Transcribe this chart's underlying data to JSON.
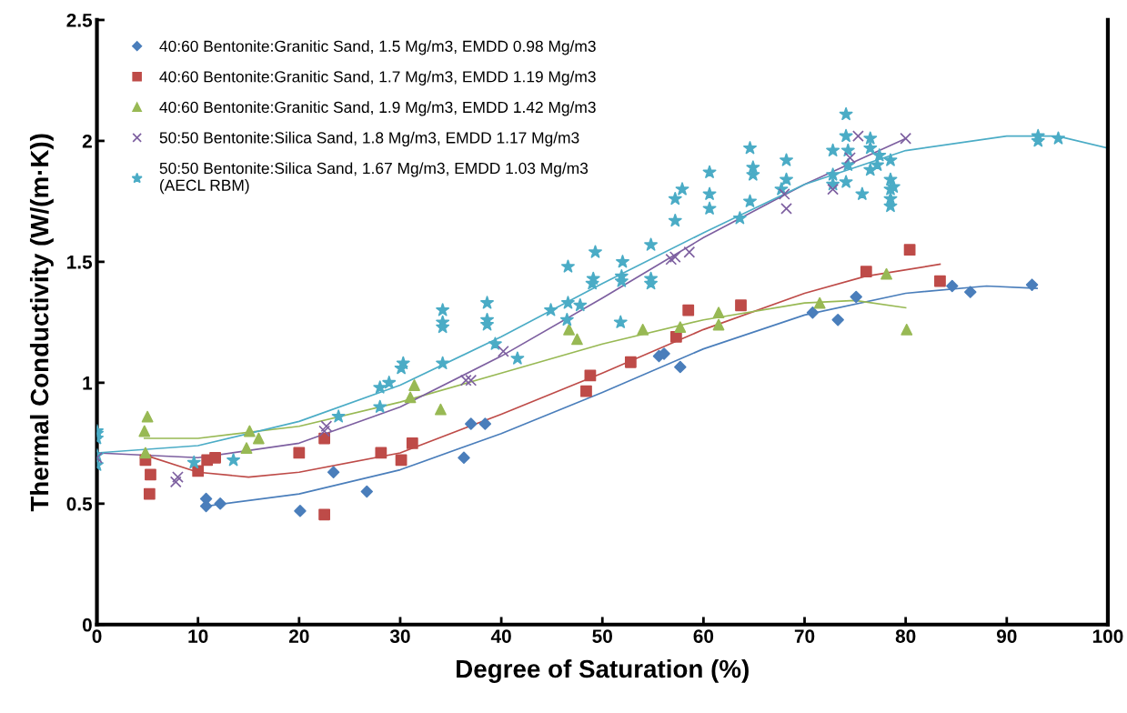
{
  "chart_data": {
    "type": "scatter",
    "xlabel": "Degree of Saturation (%)",
    "ylabel": "Thermal Conductivity (W/(m·K))",
    "xlim": [
      0,
      100
    ],
    "xticks": [
      0,
      10,
      20,
      30,
      40,
      50,
      60,
      70,
      80,
      90,
      100
    ],
    "ylim": [
      0,
      2.5
    ],
    "yticks": [
      0,
      {
        "value": 0.5,
        "label": "0.5"
      },
      1,
      {
        "value": 1.5,
        "label": "1.5"
      },
      2,
      {
        "value": 2.5,
        "label": "2.5"
      }
    ],
    "grid": false,
    "legend": "top left",
    "series": [
      {
        "name": "40:60 Bentonite:Granitic Sand, 1.5 Mg/m3, EMDD 0.98 Mg/m3",
        "marker": "diamond",
        "color": "#4a7ebb",
        "x": [
          10.8,
          10.8,
          12.2,
          20.1,
          23.4,
          26.7,
          36.3,
          37.0,
          38.4,
          55.6,
          56.1,
          57.7,
          70.8,
          73.3,
          75.1,
          84.6,
          86.4,
          92.5
        ],
        "values": [
          0.49,
          0.52,
          0.5,
          0.47,
          0.63,
          0.55,
          0.69,
          0.83,
          0.83,
          1.11,
          1.12,
          1.065,
          1.29,
          1.26,
          1.355,
          1.4,
          1.375,
          1.405
        ]
      },
      {
        "name": "40:60 Bentonite:Granitic Sand, 1.7 Mg/m3, EMDD 1.19 Mg/m3",
        "marker": "square",
        "color": "#be4b48",
        "x": [
          4.8,
          5.3,
          5.2,
          10.0,
          10.9,
          11.7,
          20.0,
          22.5,
          22.5,
          28.1,
          30.1,
          31.2,
          48.4,
          48.8,
          52.8,
          57.3,
          58.5,
          63.7,
          76.1,
          80.4,
          83.4
        ],
        "values": [
          0.68,
          0.62,
          0.54,
          0.635,
          0.68,
          0.69,
          0.71,
          0.455,
          0.77,
          0.71,
          0.68,
          0.75,
          0.965,
          1.03,
          1.085,
          1.19,
          1.3,
          1.32,
          1.46,
          1.55,
          1.42
        ]
      },
      {
        "name": "40:60 Bentonite:Granitic Sand, 1.9 Mg/m3, EMDD 1.42 Mg/m3",
        "marker": "triangle",
        "color": "#98b954",
        "x": [
          4.7,
          5.0,
          4.8,
          14.8,
          15.1,
          16.0,
          31.0,
          31.4,
          34.0,
          46.7,
          47.5,
          54.0,
          57.7,
          61.5,
          61.5,
          71.5,
          78.1,
          80.1
        ],
        "values": [
          0.8,
          0.86,
          0.71,
          0.73,
          0.8,
          0.77,
          0.94,
          0.99,
          0.89,
          1.22,
          1.18,
          1.22,
          1.23,
          1.24,
          1.29,
          1.33,
          1.45,
          1.22
        ]
      },
      {
        "name": "50:50 Bentonite:Silica Sand, 1.8 Mg/m3, EMDD 1.17 Mg/m3",
        "marker": "cross",
        "color": "#7d5fa0",
        "x": [
          0,
          7.8,
          8.0,
          22.5,
          22.7,
          36.5,
          37.0,
          40.2,
          56.8,
          57.2,
          58.6,
          68.2,
          68.0,
          72.8,
          74.5,
          75.3,
          80.0
        ],
        "values": [
          0.69,
          0.59,
          0.61,
          0.8,
          0.82,
          1.01,
          1.01,
          1.13,
          1.51,
          1.52,
          1.54,
          1.72,
          1.78,
          1.8,
          1.93,
          2.02,
          2.01
        ]
      },
      {
        "name": "50:50 Bentonite:Silica Sand, 1.67 Mg/m3, EMDD 1.03 Mg/m3\n(AECL RBM)",
        "marker": "star",
        "color": "#4bacc6",
        "x": [
          0,
          0,
          0,
          0,
          0,
          9.6,
          13.5,
          23.9,
          28.0,
          28.0,
          28.9,
          30.1,
          30.3,
          34.2,
          34.2,
          34.2,
          34.2,
          38.6,
          38.6,
          38.6,
          39.4,
          41.6,
          44.9,
          46.5,
          46.6,
          46.6,
          47.8,
          49.0,
          49.1,
          49.3,
          51.8,
          51.9,
          51.9,
          52.0,
          54.8,
          54.8,
          54.8,
          57.2,
          57.2,
          57.9,
          60.6,
          60.6,
          60.6,
          63.6,
          64.6,
          64.9,
          64.9,
          64.6,
          67.7,
          68.2,
          68.2,
          72.8,
          72.8,
          72.8,
          74.1,
          74.1,
          74.3,
          74.3,
          74.1,
          75.7,
          76.5,
          76.5,
          76.5,
          77.2,
          77.4,
          78.5,
          78.5,
          78.5,
          78.5,
          78.8,
          78.5,
          93.1,
          93.1,
          95.1
        ],
        "values": [
          0.66,
          0.7,
          0.77,
          0.79,
          0.8,
          0.67,
          0.68,
          0.86,
          0.9,
          0.98,
          1.0,
          1.06,
          1.08,
          1.08,
          1.23,
          1.25,
          1.3,
          1.24,
          1.26,
          1.33,
          1.16,
          1.1,
          1.3,
          1.26,
          1.33,
          1.48,
          1.32,
          1.41,
          1.43,
          1.54,
          1.25,
          1.42,
          1.44,
          1.5,
          1.41,
          1.43,
          1.57,
          1.67,
          1.76,
          1.8,
          1.72,
          1.78,
          1.87,
          1.68,
          1.75,
          1.86,
          1.89,
          1.97,
          1.8,
          1.84,
          1.92,
          1.82,
          1.86,
          1.96,
          2.02,
          2.11,
          1.9,
          1.96,
          1.83,
          1.78,
          1.88,
          1.97,
          2.01,
          1.9,
          1.94,
          1.73,
          1.76,
          1.8,
          1.84,
          1.81,
          1.92,
          2.0,
          2.02,
          2.01
        ]
      },
      {
        "type": "line",
        "marker": "none",
        "color": "#4a7ebb",
        "x": [
          10.8,
          20,
          30,
          40,
          50,
          60,
          70,
          80,
          88,
          93
        ],
        "values": [
          0.49,
          0.54,
          0.64,
          0.79,
          0.96,
          1.14,
          1.28,
          1.37,
          1.4,
          1.39
        ]
      },
      {
        "type": "line",
        "marker": "none",
        "color": "#be4b48",
        "x": [
          4.8,
          10,
          15,
          20,
          30,
          40,
          50,
          60,
          70,
          76,
          83.4
        ],
        "values": [
          0.7,
          0.63,
          0.61,
          0.63,
          0.71,
          0.87,
          1.04,
          1.22,
          1.37,
          1.44,
          1.49
        ]
      },
      {
        "type": "line",
        "marker": "none",
        "color": "#98b954",
        "x": [
          4.7,
          10,
          20,
          30,
          40,
          50,
          60,
          70,
          75,
          80
        ],
        "values": [
          0.77,
          0.77,
          0.82,
          0.92,
          1.04,
          1.16,
          1.26,
          1.33,
          1.34,
          1.31
        ]
      },
      {
        "type": "line",
        "marker": "none",
        "color": "#7d5fa0",
        "x": [
          0,
          10,
          20,
          30,
          40,
          50,
          60,
          70,
          80
        ],
        "values": [
          0.71,
          0.69,
          0.75,
          0.9,
          1.11,
          1.35,
          1.6,
          1.82,
          2.01
        ]
      },
      {
        "type": "line",
        "marker": "none",
        "color": "#4bacc6",
        "x": [
          0,
          10,
          20,
          30,
          40,
          50,
          60,
          70,
          80,
          90,
          95,
          100
        ],
        "values": [
          0.71,
          0.74,
          0.84,
          0.99,
          1.19,
          1.41,
          1.62,
          1.82,
          1.96,
          2.02,
          2.02,
          1.97
        ]
      }
    ]
  }
}
